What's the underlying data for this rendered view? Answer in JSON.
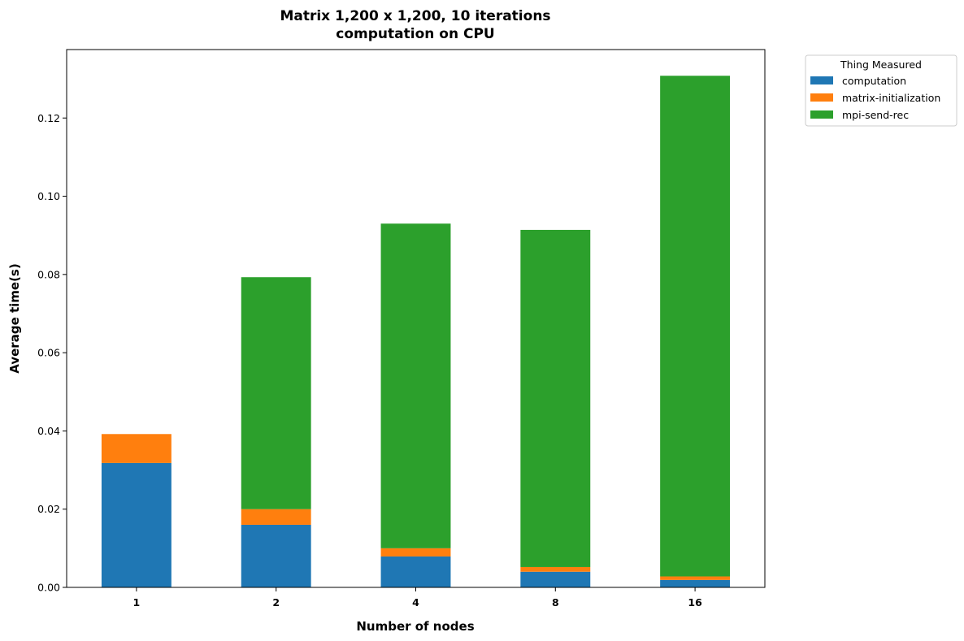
{
  "chart_data": {
    "type": "bar",
    "stacked": true,
    "title_line1": "Matrix 1,200 x 1,200, 10 iterations",
    "title_line2": "computation on CPU",
    "xlabel": "Number of nodes",
    "ylabel": "Average time(s)",
    "categories": [
      "1",
      "2",
      "4",
      "8",
      "16"
    ],
    "ylim": [
      0,
      0.1375
    ],
    "yticks": [
      "0.00",
      "0.02",
      "0.04",
      "0.06",
      "0.08",
      "0.10",
      "0.12"
    ],
    "ytick_values": [
      0,
      0.02,
      0.04,
      0.06,
      0.08,
      0.1,
      0.12
    ],
    "legend": {
      "title": "Thing Measured",
      "position": "outside-top-right"
    },
    "grid": false,
    "series": [
      {
        "name": "computation",
        "color": "#1f77b4",
        "values": [
          0.0318,
          0.016,
          0.0079,
          0.004,
          0.0019
        ]
      },
      {
        "name": "matrix-initialization",
        "color": "#ff7f0e",
        "values": [
          0.0074,
          0.004,
          0.0021,
          0.0012,
          0.0009
        ]
      },
      {
        "name": "mpi-send-rec",
        "color": "#2ca02c",
        "values": [
          0.0,
          0.0593,
          0.083,
          0.0862,
          0.128
        ]
      }
    ]
  }
}
